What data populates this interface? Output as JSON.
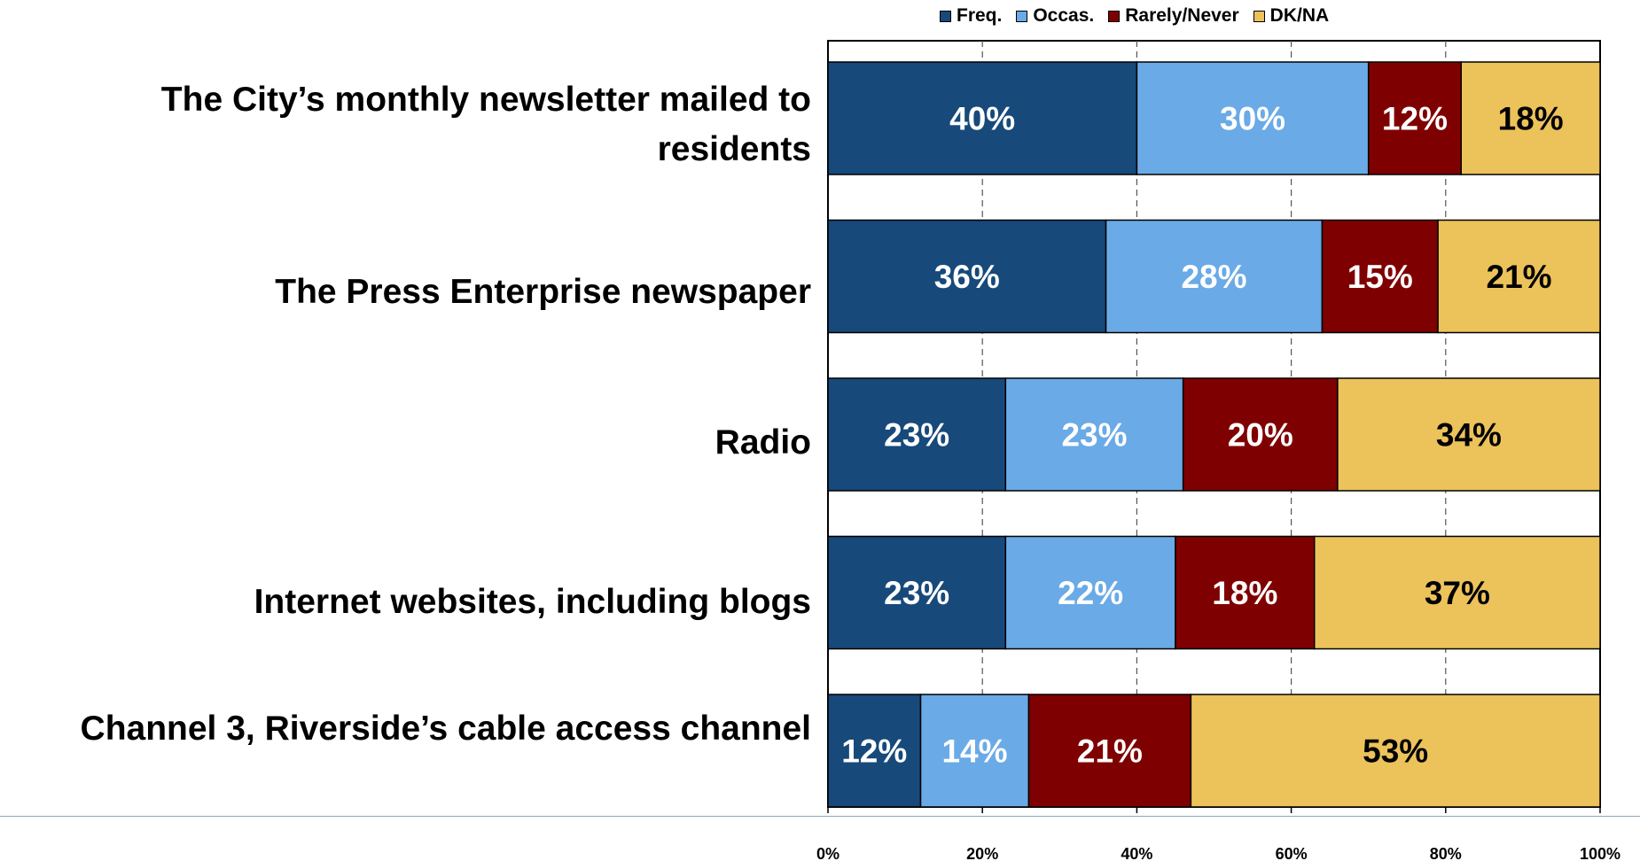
{
  "legend": {
    "items": [
      {
        "label": "Freq.",
        "color": "#17497a"
      },
      {
        "label": "Occas.",
        "color": "#6aaae6"
      },
      {
        "label": "Rarely/Never",
        "color": "#7f0000"
      },
      {
        "label": "DK/NA",
        "color": "#ecc25b"
      }
    ]
  },
  "chart_data": {
    "type": "bar",
    "orientation": "horizontal",
    "stacked": true,
    "categories": [
      "The City’s monthly newsletter mailed to residents",
      "The Press Enterprise newspaper",
      "Radio",
      "Internet websites, including blogs",
      "Channel 3, Riverside’s cable access channel"
    ],
    "series": [
      {
        "name": "Freq.",
        "color": "#17497a",
        "values": [
          40,
          36,
          23,
          23,
          12
        ],
        "labels": [
          "40%",
          "36%",
          "23%",
          "23%",
          "12%"
        ]
      },
      {
        "name": "Occas.",
        "color": "#6aaae6",
        "values": [
          30,
          28,
          23,
          22,
          14
        ],
        "labels": [
          "30%",
          "28%",
          "23%",
          "22%",
          "14%"
        ]
      },
      {
        "name": "Rarely/Never",
        "color": "#7f0000",
        "values": [
          12,
          15,
          20,
          18,
          21
        ],
        "labels": [
          "12%",
          "15%",
          "20%",
          "18%",
          "21%"
        ]
      },
      {
        "name": "DK/NA",
        "color": "#ecc25b",
        "values": [
          18,
          21,
          34,
          37,
          53
        ],
        "labels": [
          "18%",
          "21%",
          "34%",
          "37%",
          "53%"
        ]
      }
    ],
    "xlim": [
      0,
      100
    ],
    "x_ticks": [
      "0%",
      "20%",
      "40%",
      "60%",
      "80%",
      "100%"
    ],
    "grid": "vertical dashed",
    "legend_position": "top"
  }
}
